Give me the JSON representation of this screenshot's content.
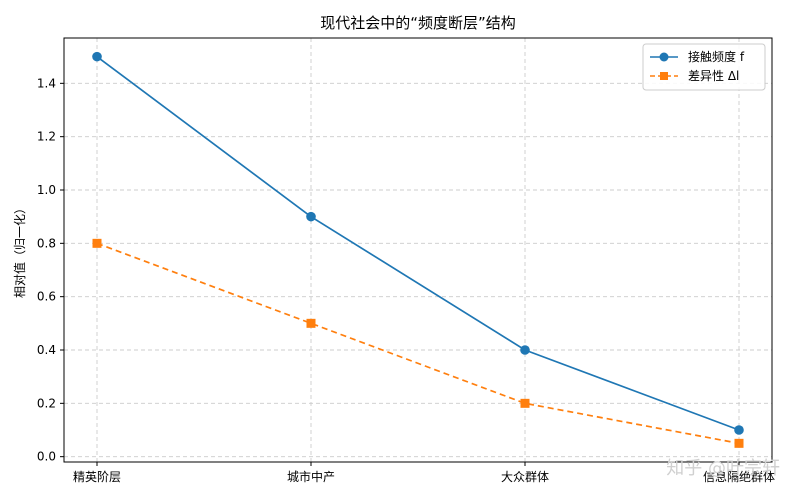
{
  "chart_data": {
    "type": "line",
    "title": "现代社会中的“频度断层”结构",
    "xlabel": "",
    "ylabel": "相对值（归一化）",
    "categories": [
      "精英阶层",
      "城市中产",
      "大众群体",
      "信息隔绝群体"
    ],
    "series": [
      {
        "name": "接触频度 f",
        "values": [
          1.5,
          0.9,
          0.4,
          0.1
        ],
        "color": "#1f77b4",
        "marker": "circle",
        "line_style": "solid"
      },
      {
        "name": "差异性 Δl",
        "values": [
          0.8,
          0.5,
          0.2,
          0.05
        ],
        "color": "#ff7f0e",
        "marker": "square",
        "line_style": "dashed"
      }
    ],
    "ylim": [
      -0.02,
      1.57
    ],
    "yticks": [
      "0.0",
      "0.2",
      "0.4",
      "0.6",
      "0.8",
      "1.0",
      "1.2",
      "1.4"
    ],
    "grid": true,
    "legend_position": "top-right"
  },
  "watermark": "知乎 @叶宗轩"
}
